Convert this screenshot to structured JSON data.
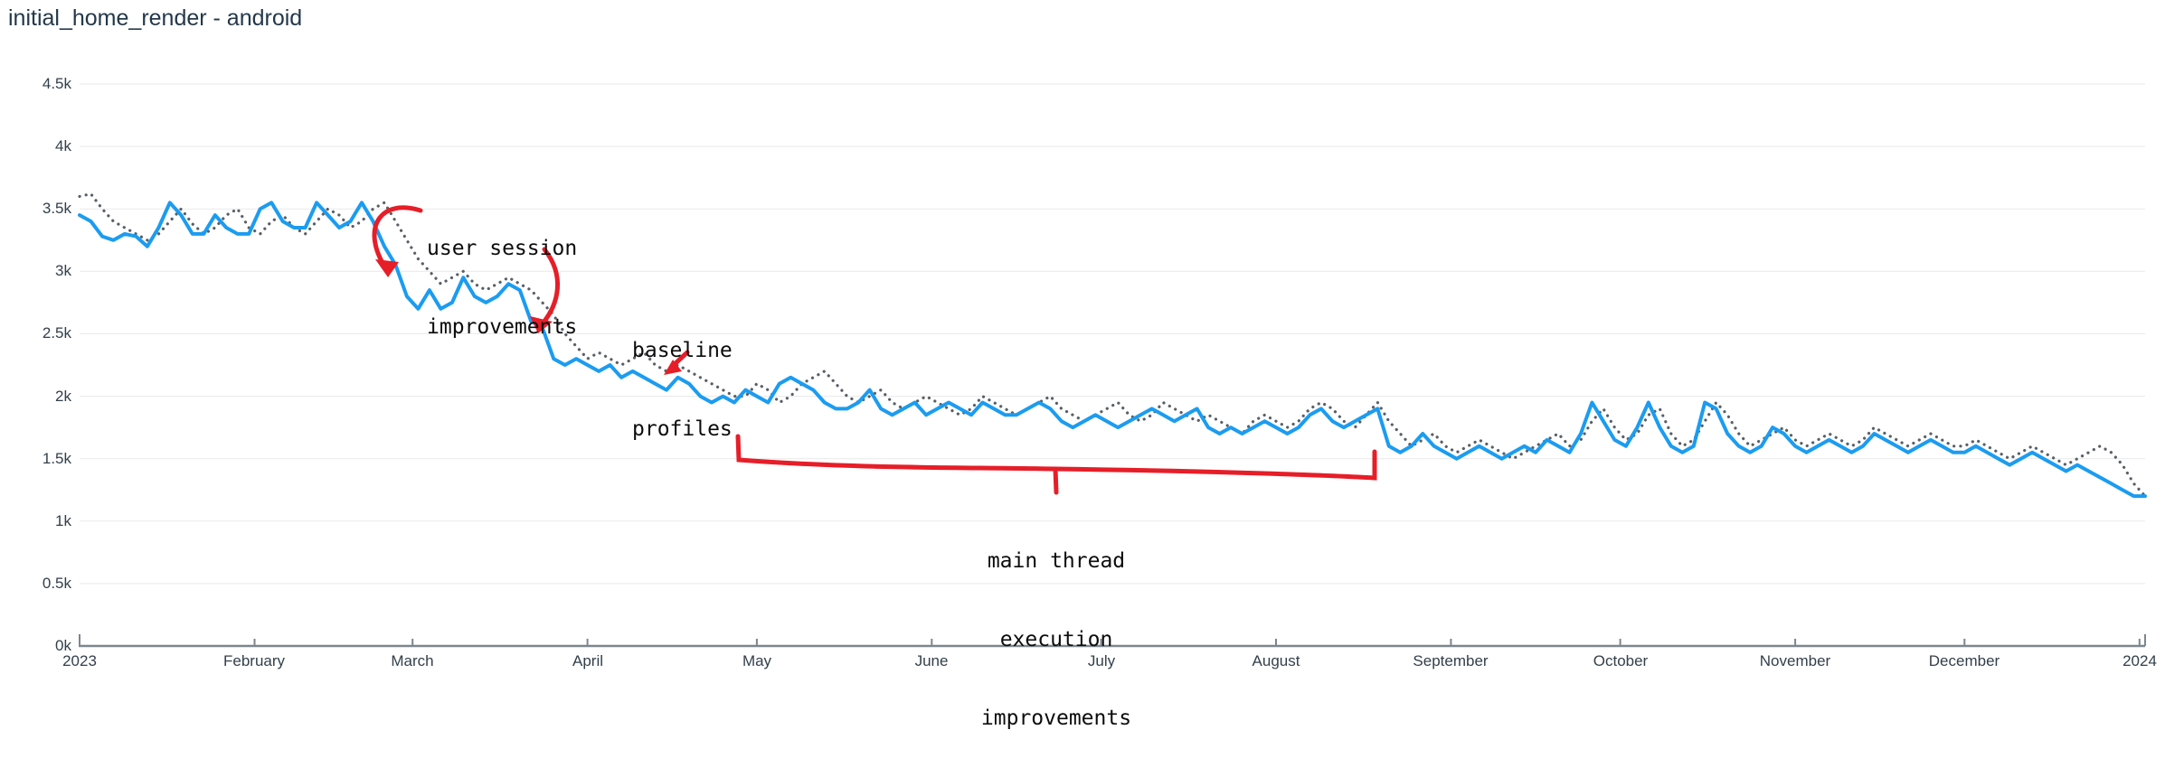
{
  "page": {
    "title": "initial_home_render - android"
  },
  "colors": {
    "annotation": "#e61e28",
    "line_solid": "#1b9cf0",
    "line_dotted": "#595f66",
    "grid": "#e9e9e9",
    "axis": "#7e868d",
    "axis_text": "#323f4a",
    "title_text": "#24384a"
  },
  "chart_data": {
    "type": "line",
    "title": "initial_home_render - android",
    "xlabel": "",
    "ylabel": "",
    "grid": "horizontal",
    "legend": "none",
    "ylim": [
      0,
      4500
    ],
    "y_axis": {
      "tick_labels": [
        "0k",
        "0.5k",
        "1k",
        "1.5k",
        "2k",
        "2.5k",
        "3k",
        "3.5k",
        "4k",
        "4.5k"
      ],
      "tick_values": [
        0,
        500,
        1000,
        1500,
        2000,
        2500,
        3000,
        3500,
        4000,
        4500
      ],
      "range": [
        0,
        4500
      ]
    },
    "x_axis": {
      "start_label": "2023",
      "end_label": "2024",
      "max_day": 366,
      "tick_labels": [
        "2023",
        "February",
        "March",
        "April",
        "May",
        "June",
        "July",
        "August",
        "September",
        "October",
        "November",
        "December",
        "2024"
      ],
      "tick_days": [
        0,
        31,
        59,
        90,
        120,
        151,
        181,
        212,
        243,
        273,
        304,
        334,
        365
      ]
    },
    "series": [
      {
        "name": "solid-blue",
        "style": "solid",
        "color": "#1b9cf0",
        "start_day": 0,
        "step_days": 2,
        "values": [
          3450,
          3400,
          3280,
          3250,
          3300,
          3280,
          3200,
          3350,
          3550,
          3450,
          3300,
          3300,
          3450,
          3350,
          3300,
          3300,
          3500,
          3550,
          3400,
          3350,
          3350,
          3550,
          3450,
          3350,
          3400,
          3550,
          3400,
          3200,
          3050,
          2800,
          2700,
          2850,
          2700,
          2750,
          2950,
          2800,
          2750,
          2800,
          2900,
          2850,
          2600,
          2550,
          2300,
          2250,
          2300,
          2250,
          2200,
          2250,
          2150,
          2200,
          2150,
          2100,
          2050,
          2150,
          2100,
          2000,
          1950,
          2000,
          1950,
          2050,
          2000,
          1950,
          2100,
          2150,
          2100,
          2050,
          1950,
          1900,
          1900,
          1950,
          2050,
          1900,
          1850,
          1900,
          1950,
          1850,
          1900,
          1950,
          1900,
          1850,
          1950,
          1900,
          1850,
          1850,
          1900,
          1950,
          1900,
          1800,
          1750,
          1800,
          1850,
          1800,
          1750,
          1800,
          1850,
          1900,
          1850,
          1800,
          1850,
          1900,
          1750,
          1700,
          1750,
          1700,
          1750,
          1800,
          1750,
          1700,
          1750,
          1850,
          1900,
          1800,
          1750,
          1800,
          1850,
          1900,
          1600,
          1550,
          1600,
          1700,
          1600,
          1550,
          1500,
          1550,
          1600,
          1550,
          1500,
          1550,
          1600,
          1550,
          1650,
          1600,
          1550,
          1700,
          1950,
          1800,
          1650,
          1600,
          1750,
          1950,
          1750,
          1600,
          1550,
          1600,
          1950,
          1900,
          1700,
          1600,
          1550,
          1600,
          1750,
          1700,
          1600,
          1550,
          1600,
          1650,
          1600,
          1550,
          1600,
          1700,
          1650,
          1600,
          1550,
          1600,
          1650,
          1600,
          1550,
          1550,
          1600,
          1550,
          1500,
          1450,
          1500,
          1550,
          1500,
          1450,
          1400,
          1450,
          1400,
          1350,
          1300,
          1250,
          1200,
          1200
        ]
      },
      {
        "name": "dotted-gray",
        "style": "dotted",
        "color": "#595f66",
        "start_day": 0,
        "step_days": 2,
        "values": [
          3600,
          3620,
          3500,
          3400,
          3350,
          3300,
          3250,
          3300,
          3400,
          3500,
          3380,
          3300,
          3350,
          3450,
          3500,
          3350,
          3300,
          3400,
          3450,
          3350,
          3300,
          3400,
          3500,
          3450,
          3350,
          3400,
          3500,
          3550,
          3400,
          3250,
          3100,
          3000,
          2900,
          2950,
          3000,
          2900,
          2850,
          2900,
          2950,
          2900,
          2850,
          2750,
          2650,
          2500,
          2400,
          2300,
          2350,
          2300,
          2250,
          2300,
          2350,
          2250,
          2200,
          2250,
          2200,
          2150,
          2100,
          2050,
          2000,
          2000,
          2100,
          2050,
          1950,
          2000,
          2100,
          2150,
          2200,
          2100,
          2000,
          1950,
          2000,
          2050,
          1950,
          1900,
          1950,
          2000,
          1950,
          1900,
          1850,
          1900,
          2000,
          1950,
          1900,
          1850,
          1900,
          1950,
          2000,
          1900,
          1850,
          1800,
          1850,
          1900,
          1950,
          1850,
          1800,
          1850,
          1950,
          1900,
          1850,
          1800,
          1850,
          1800,
          1750,
          1700,
          1800,
          1850,
          1800,
          1750,
          1800,
          1900,
          1950,
          1900,
          1800,
          1750,
          1850,
          1950,
          1800,
          1700,
          1600,
          1650,
          1700,
          1600,
          1550,
          1600,
          1650,
          1600,
          1550,
          1500,
          1550,
          1600,
          1650,
          1700,
          1600,
          1650,
          1800,
          1900,
          1750,
          1650,
          1700,
          1850,
          1900,
          1700,
          1600,
          1650,
          1800,
          1950,
          1850,
          1700,
          1600,
          1650,
          1700,
          1750,
          1650,
          1600,
          1650,
          1700,
          1650,
          1600,
          1650,
          1750,
          1700,
          1650,
          1600,
          1650,
          1700,
          1650,
          1600,
          1600,
          1650,
          1600,
          1550,
          1500,
          1550,
          1600,
          1550,
          1500,
          1450,
          1500,
          1550,
          1600,
          1550,
          1450,
          1300,
          1200
        ]
      }
    ],
    "annotations": [
      {
        "id": "user-session",
        "lines": [
          "user session",
          "improvements"
        ],
        "arrow_targets": [
          {
            "day": 55,
            "value": 2950
          },
          {
            "day": 82,
            "value": 2520
          }
        ]
      },
      {
        "id": "baseline-profiles",
        "lines": [
          "baseline",
          "profiles"
        ],
        "arrow_targets": [
          {
            "day": 103,
            "value": 2170
          }
        ]
      },
      {
        "id": "main-thread",
        "lines": [
          "main thread",
          "execution",
          "improvements"
        ],
        "bracket_span_days": [
          117,
          229
        ]
      }
    ]
  }
}
